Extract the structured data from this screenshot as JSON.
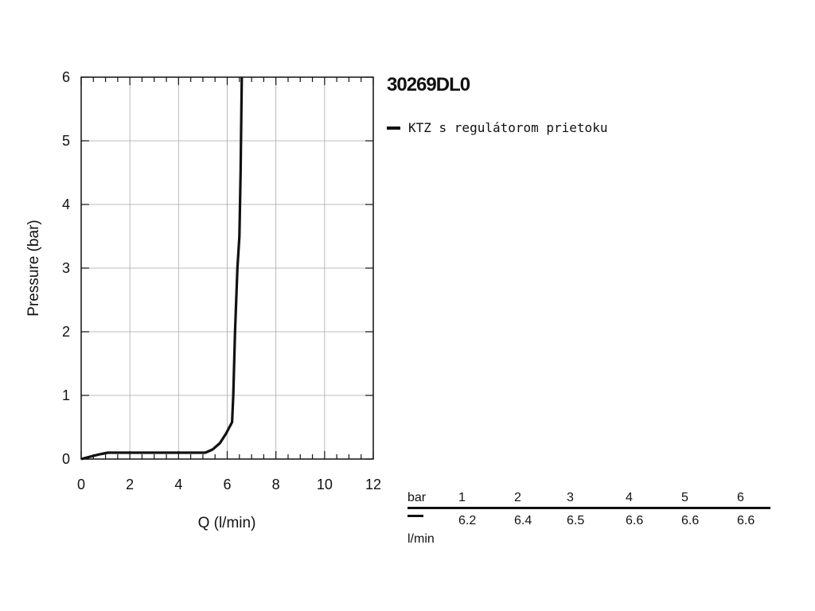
{
  "header": {
    "product_code": "30269DL0"
  },
  "legend": {
    "items": [
      {
        "label": "KTZ s regulátorom prietoku",
        "color": "#111111"
      }
    ]
  },
  "chart_data": {
    "type": "line",
    "xlabel": "Q (l/min)",
    "ylabel": "Pressure (bar)",
    "xlim": [
      0,
      12
    ],
    "ylim": [
      0,
      6
    ],
    "xticks": [
      0,
      2,
      4,
      6,
      8,
      10,
      12
    ],
    "yticks": [
      0,
      1,
      2,
      3,
      4,
      5,
      6
    ],
    "x_tick_labels": [
      "0",
      "2",
      "4",
      "6",
      "8",
      "10",
      "12"
    ],
    "y_tick_labels": [
      "0",
      "1",
      "2",
      "3",
      "4",
      "5",
      "6"
    ],
    "grid": true,
    "series": [
      {
        "name": "KTZ s regulátorom prietoku",
        "color": "#111111",
        "points": [
          [
            0,
            0
          ],
          [
            0.3,
            0.03
          ],
          [
            0.7,
            0.07
          ],
          [
            1.1,
            0.1
          ],
          [
            2,
            0.1
          ],
          [
            3,
            0.1
          ],
          [
            4,
            0.1
          ],
          [
            5.1,
            0.1
          ],
          [
            5.4,
            0.15
          ],
          [
            5.7,
            0.25
          ],
          [
            5.95,
            0.4
          ],
          [
            6.2,
            0.58
          ],
          [
            6.25,
            1.0
          ],
          [
            6.32,
            2.0
          ],
          [
            6.42,
            3.0
          ],
          [
            6.5,
            3.5
          ],
          [
            6.55,
            4.5
          ],
          [
            6.6,
            6.0
          ]
        ]
      }
    ]
  },
  "flow_table": {
    "pressure_unit": "bar",
    "flow_unit": "l/min",
    "pressures": [
      "1",
      "2",
      "3",
      "4",
      "5",
      "6"
    ],
    "flows": [
      "6.2",
      "6.4",
      "6.5",
      "6.6",
      "6.6",
      "6.6"
    ]
  }
}
